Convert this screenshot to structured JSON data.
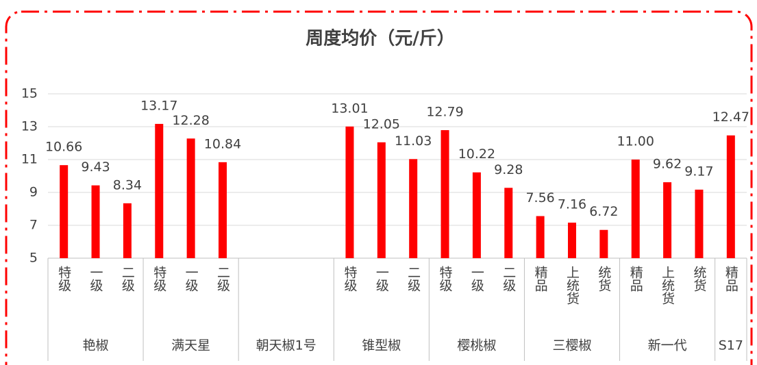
{
  "chart_data": {
    "type": "bar",
    "title": "周度均价（元/斤）",
    "color": "#ff0000",
    "ylim": [
      5,
      15
    ],
    "yticks": [
      5,
      7,
      9,
      11,
      13,
      15
    ],
    "grid": true,
    "groups": [
      {
        "label": "艳椒",
        "categories": [
          "特级",
          "一级",
          "二级"
        ],
        "values": [
          10.66,
          9.43,
          8.34
        ],
        "value_labels": [
          "10.66",
          "9.43",
          "8.34"
        ]
      },
      {
        "label": "满天星",
        "categories": [
          "特级",
          "一级",
          "二级"
        ],
        "values": [
          13.17,
          12.28,
          10.84
        ],
        "value_labels": [
          "13.17",
          "12.28",
          "10.84"
        ]
      },
      {
        "label": "朝天椒1号",
        "categories": [
          null,
          null,
          null
        ],
        "values": [
          null,
          null,
          null
        ],
        "value_labels": [
          null,
          null,
          null
        ]
      },
      {
        "label": "锥型椒",
        "categories": [
          "特级",
          "一级",
          "二级"
        ],
        "values": [
          13.01,
          12.05,
          11.03
        ],
        "value_labels": [
          "13.01",
          "12.05",
          "11.03"
        ]
      },
      {
        "label": "樱桃椒",
        "categories": [
          "特级",
          "一级",
          "二级"
        ],
        "values": [
          12.79,
          10.22,
          9.28
        ],
        "value_labels": [
          "12.79",
          "10.22",
          "9.28"
        ]
      },
      {
        "label": "三樱椒",
        "categories": [
          "精品",
          "上统货",
          "统货"
        ],
        "values": [
          7.56,
          7.16,
          6.72
        ],
        "value_labels": [
          "7.56",
          "7.16",
          "6.72"
        ]
      },
      {
        "label": "新一代",
        "categories": [
          "精品",
          "上统货",
          "统货"
        ],
        "values": [
          11.0,
          9.62,
          9.17
        ],
        "value_labels": [
          "11.00",
          "9.62",
          "9.17"
        ]
      },
      {
        "label": "S17",
        "categories": [
          "精品"
        ],
        "values": [
          12.47
        ],
        "value_labels": [
          "12.47"
        ]
      }
    ]
  }
}
